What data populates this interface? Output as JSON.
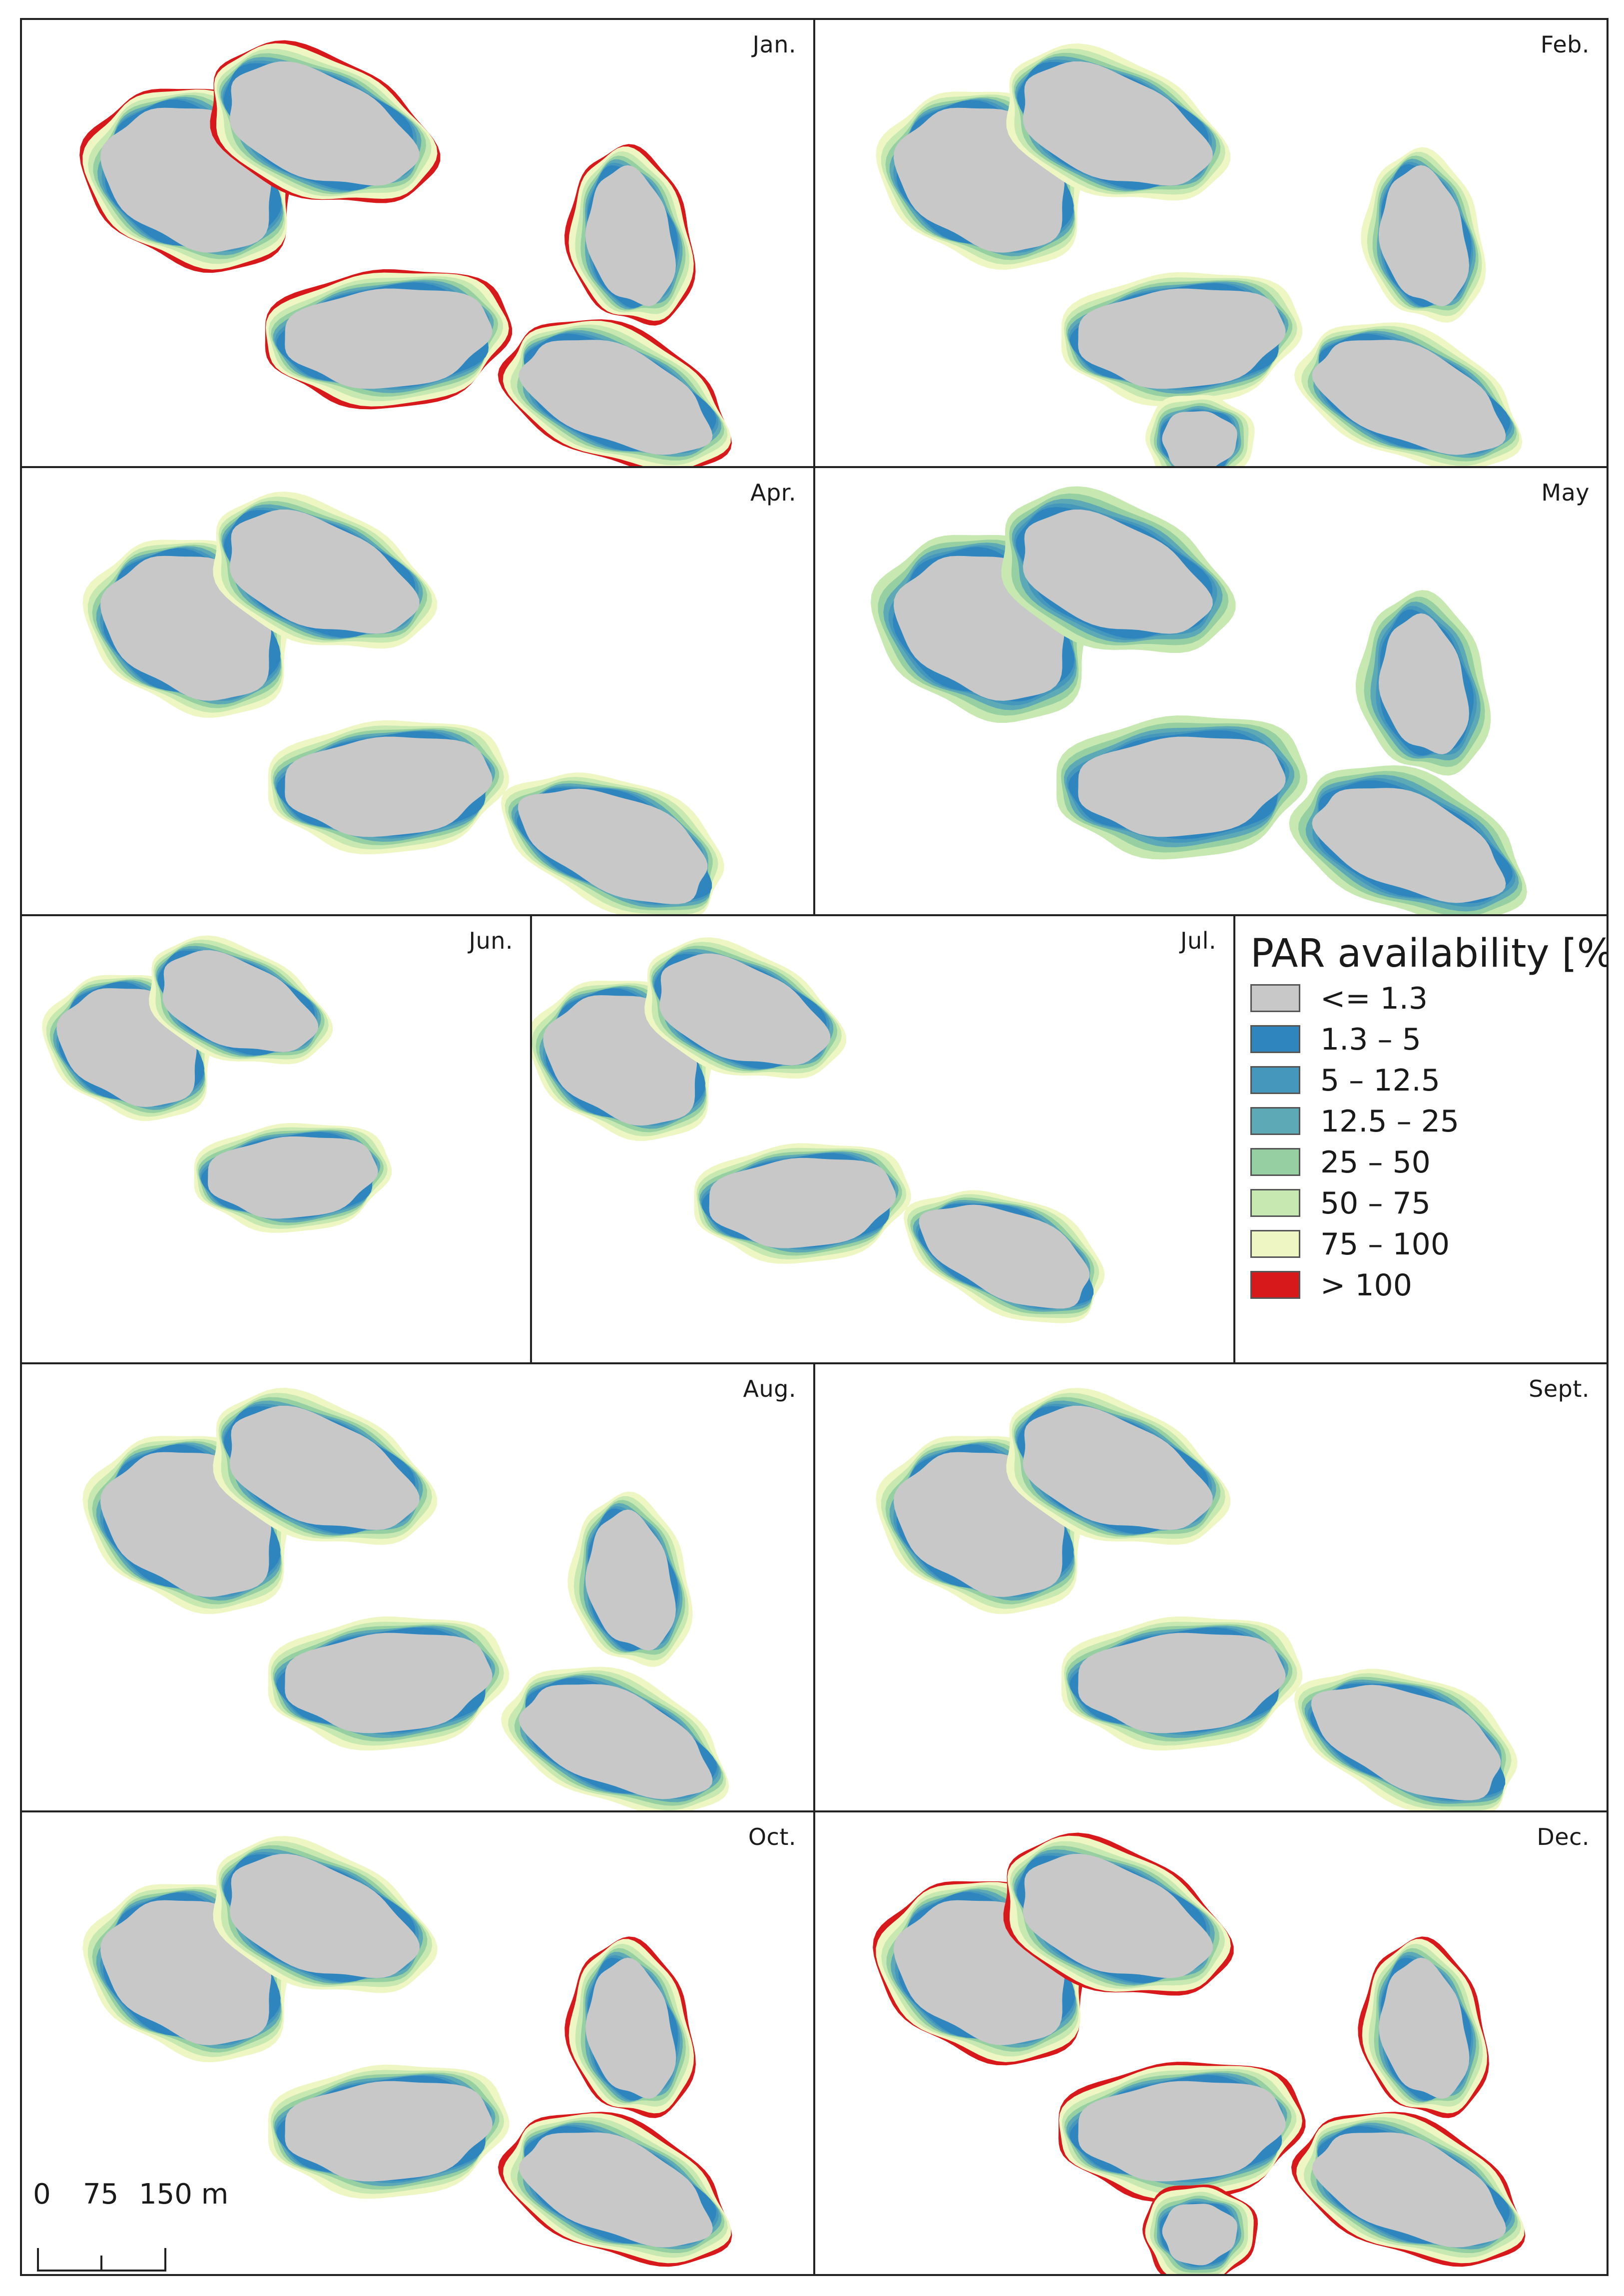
{
  "legend": {
    "title": "PAR availability [%]",
    "items": [
      {
        "label": "<= 1.3",
        "color": "#c8c8c8"
      },
      {
        "label": "1.3 – 5",
        "color": "#2f86bf"
      },
      {
        "label": "5 – 12.5",
        "color": "#4598bc"
      },
      {
        "label": "12.5 – 25",
        "color": "#5ea9b6"
      },
      {
        "label": "25 – 50",
        "color": "#95cfa2"
      },
      {
        "label": "50 – 75",
        "color": "#c7e8b0"
      },
      {
        "label": "75 – 100",
        "color": "#eef6c4"
      },
      {
        "label": "> 100",
        "color": "#d7191c"
      }
    ]
  },
  "panels": [
    {
      "month": "Jan."
    },
    {
      "month": "Feb."
    },
    {
      "month": "Apr."
    },
    {
      "month": "May"
    },
    {
      "month": "Jun."
    },
    {
      "month": "Jul."
    },
    {
      "month": "Aug."
    },
    {
      "month": "Sept."
    },
    {
      "month": "Oct."
    },
    {
      "month": "Dec."
    }
  ],
  "scalebar": {
    "labels": [
      "0",
      "75",
      "150 m"
    ]
  }
}
